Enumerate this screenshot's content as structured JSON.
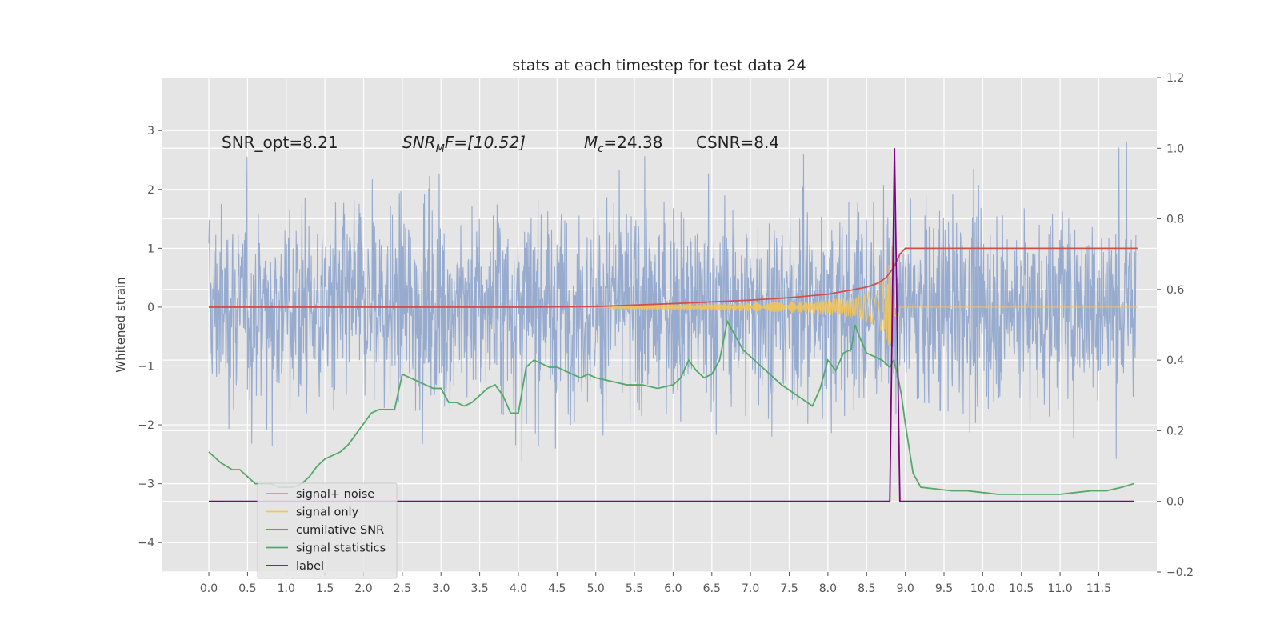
{
  "chart_data": {
    "type": "line",
    "title": "stats at each timestep for test data 24",
    "ylabel": "Whitened strain",
    "xlabel": "",
    "x_ticks": [
      "0.0",
      "0.5",
      "1.0",
      "1.5",
      "2.0",
      "2.5",
      "3.0",
      "3.5",
      "4.0",
      "4.5",
      "5.0",
      "5.5",
      "6.0",
      "6.5",
      "7.0",
      "7.5",
      "8.0",
      "8.5",
      "9.0",
      "9.5",
      "10.0",
      "10.5",
      "11.0",
      "11.5"
    ],
    "xlim": [
      -0.6,
      12.25
    ],
    "ylim_left": [
      -4.5,
      3.9
    ],
    "ylim_right": [
      -0.2,
      1.2
    ],
    "y_ticks_left": [
      "3",
      "2",
      "1",
      "0",
      "−1",
      "−2",
      "−3",
      "−4"
    ],
    "y_ticks_right": [
      "1.2",
      "1.0",
      "0.8",
      "0.6",
      "0.4",
      "0.2",
      "0.0",
      "−0.2"
    ],
    "grid": true,
    "legend_position": "lower-left",
    "annotations": {
      "snr_opt": "SNR_opt=8.21",
      "snr_mf_base": "SNR",
      "snr_mf_sub": "M",
      "snr_mf_rest": "F=[10.52]",
      "mc_base": "M",
      "mc_sub": "c",
      "mc_rest": "=24.38",
      "csnr": "CSNR=8.4"
    },
    "series": [
      {
        "name": "signal+ noise",
        "color": "#92a8cd",
        "axis": "left",
        "description_range": [
          -3.5,
          3.5
        ]
      },
      {
        "name": "signal only",
        "color": "#f2c45a",
        "axis": "left",
        "chirp_start": 5.2,
        "merger": 8.88
      },
      {
        "name": "cumilative SNR",
        "color": "#d04f4f",
        "axis": "left",
        "x": [
          0.0,
          2.0,
          4.0,
          5.0,
          6.0,
          7.0,
          7.5,
          8.0,
          8.3,
          8.5,
          8.65,
          8.75,
          8.85,
          8.93,
          9.0,
          12.0
        ],
        "y": [
          0.0,
          0.0,
          0.0,
          0.01,
          0.06,
          0.12,
          0.16,
          0.22,
          0.29,
          0.34,
          0.41,
          0.5,
          0.67,
          0.9,
          1.0,
          1.0
        ]
      },
      {
        "name": "signal statistics",
        "color": "#55a868",
        "axis": "right",
        "x": [
          0.0,
          0.15,
          0.3,
          0.4,
          0.5,
          0.6,
          0.7,
          0.8,
          0.9,
          1.0,
          1.1,
          1.2,
          1.3,
          1.4,
          1.5,
          1.6,
          1.7,
          1.8,
          1.9,
          2.0,
          2.1,
          2.2,
          2.3,
          2.4,
          2.5,
          2.6,
          2.7,
          2.8,
          2.9,
          3.0,
          3.1,
          3.2,
          3.3,
          3.4,
          3.5,
          3.6,
          3.7,
          3.8,
          3.9,
          4.0,
          4.1,
          4.2,
          4.3,
          4.4,
          4.5,
          4.6,
          4.7,
          4.8,
          4.9,
          5.0,
          5.2,
          5.4,
          5.6,
          5.8,
          6.0,
          6.1,
          6.2,
          6.3,
          6.4,
          6.5,
          6.6,
          6.7,
          6.8,
          6.9,
          7.0,
          7.2,
          7.4,
          7.6,
          7.8,
          7.9,
          8.0,
          8.1,
          8.2,
          8.3,
          8.35,
          8.4,
          8.5,
          8.6,
          8.7,
          8.8,
          8.85,
          8.9,
          8.95,
          9.0,
          9.1,
          9.2,
          9.4,
          9.6,
          9.8,
          10.0,
          10.2,
          10.4,
          10.6,
          10.8,
          11.0,
          11.2,
          11.4,
          11.6,
          11.8,
          11.95
        ],
        "y": [
          0.14,
          0.11,
          0.09,
          0.09,
          0.07,
          0.05,
          0.05,
          0.05,
          0.04,
          0.04,
          0.04,
          0.05,
          0.07,
          0.1,
          0.12,
          0.13,
          0.14,
          0.16,
          0.19,
          0.22,
          0.25,
          0.26,
          0.26,
          0.26,
          0.36,
          0.35,
          0.34,
          0.33,
          0.32,
          0.32,
          0.28,
          0.28,
          0.27,
          0.28,
          0.3,
          0.32,
          0.33,
          0.3,
          0.25,
          0.25,
          0.38,
          0.4,
          0.39,
          0.38,
          0.38,
          0.37,
          0.36,
          0.35,
          0.36,
          0.35,
          0.34,
          0.33,
          0.33,
          0.32,
          0.33,
          0.35,
          0.4,
          0.37,
          0.35,
          0.36,
          0.4,
          0.51,
          0.47,
          0.43,
          0.41,
          0.37,
          0.33,
          0.3,
          0.27,
          0.32,
          0.4,
          0.37,
          0.42,
          0.43,
          0.5,
          0.47,
          0.42,
          0.41,
          0.4,
          0.38,
          0.4,
          0.36,
          0.3,
          0.22,
          0.08,
          0.04,
          0.035,
          0.03,
          0.03,
          0.025,
          0.02,
          0.02,
          0.02,
          0.02,
          0.02,
          0.025,
          0.03,
          0.03,
          0.04,
          0.05
        ]
      },
      {
        "name": "label",
        "color": "#800080",
        "axis": "right",
        "x": [
          0.0,
          8.8,
          8.86,
          8.93,
          11.95
        ],
        "y": [
          0.0,
          0.0,
          1.0,
          0.0,
          0.0
        ]
      }
    ]
  }
}
